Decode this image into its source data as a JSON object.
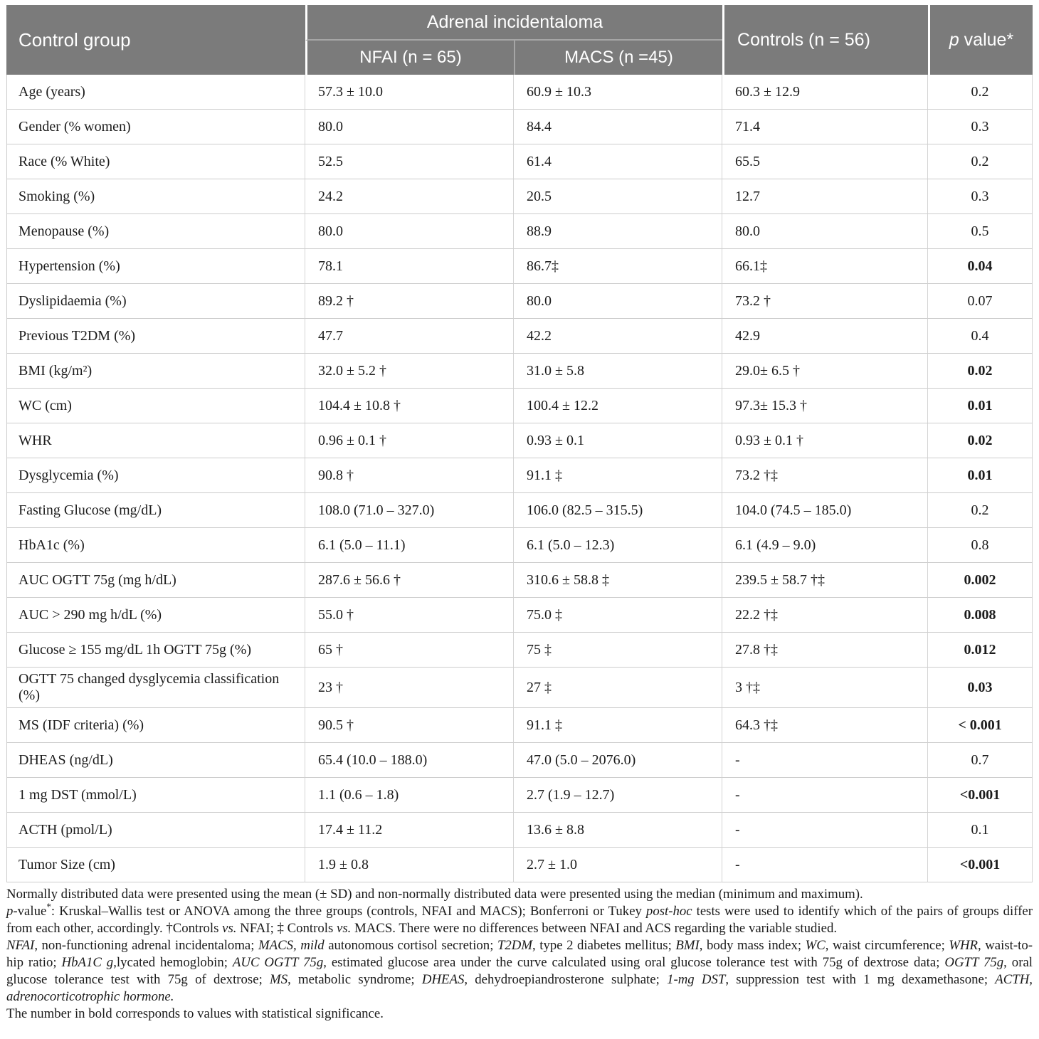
{
  "colors": {
    "header_bg": "#7b7b7b",
    "header_text": "#ffffff",
    "grid_line": "#cccccc",
    "body_text": "#1b1b1b"
  },
  "header": {
    "col1": "Control group",
    "group": "Adrenal incidentaloma",
    "sub_nfai": "NFAI (n = 65)",
    "sub_macs": "MACS (n =45)",
    "controls": "Controls (n = 56)",
    "p_italic": "p",
    "p_rest": " value*"
  },
  "table": {
    "rows": [
      {
        "label": "Age (years)",
        "nfai": "57.3 ± 10.0",
        "macs": "60.9 ± 10.3",
        "controls": "60.3 ± 12.9",
        "p": "0.2",
        "p_bold": false
      },
      {
        "label": "Gender (% women)",
        "nfai": "80.0",
        "macs": "84.4",
        "controls": "71.4",
        "p": "0.3",
        "p_bold": false
      },
      {
        "label": "Race (% White)",
        "nfai": "52.5",
        "macs": "61.4",
        "controls": "65.5",
        "p": "0.2",
        "p_bold": false
      },
      {
        "label": "Smoking (%)",
        "nfai": "24.2",
        "macs": "20.5",
        "controls": "12.7",
        "p": "0.3",
        "p_bold": false
      },
      {
        "label": "Menopause (%)",
        "nfai": "80.0",
        "macs": "88.9",
        "controls": "80.0",
        "p": "0.5",
        "p_bold": false
      },
      {
        "label": "Hypertension (%)",
        "nfai": "78.1",
        "macs": "86.7‡",
        "controls": "66.1‡",
        "p": "0.04",
        "p_bold": true
      },
      {
        "label": "Dyslipidaemia (%)",
        "nfai": "89.2 †",
        "macs": "80.0",
        "controls": "73.2 †",
        "p": "0.07",
        "p_bold": false
      },
      {
        "label": "Previous T2DM (%)",
        "nfai": "47.7",
        "macs": "42.2",
        "controls": "42.9",
        "p": "0.4",
        "p_bold": false
      },
      {
        "label": "BMI (kg/m²)",
        "nfai": "32.0 ± 5.2 †",
        "macs": "31.0 ± 5.8",
        "controls": "29.0± 6.5 †",
        "p": "0.02",
        "p_bold": true
      },
      {
        "label": "WC (cm)",
        "nfai": "104.4 ± 10.8 †",
        "macs": "100.4 ± 12.2",
        "controls": "97.3± 15.3 †",
        "p": "0.01",
        "p_bold": true
      },
      {
        "label": "WHR",
        "nfai": "0.96 ± 0.1 †",
        "macs": "0.93 ± 0.1",
        "controls": "0.93 ± 0.1 †",
        "p": "0.02",
        "p_bold": true
      },
      {
        "label": "Dysglycemia (%)",
        "nfai": "90.8 †",
        "macs": "91.1 ‡",
        "controls": "73.2 †‡",
        "p": "0.01",
        "p_bold": true
      },
      {
        "label": "Fasting Glucose (mg/dL)",
        "nfai": "108.0 (71.0 – 327.0)",
        "macs": "106.0 (82.5 – 315.5)",
        "controls": "104.0 (74.5 – 185.0)",
        "p": "0.2",
        "p_bold": false
      },
      {
        "label": "HbA1c (%)",
        "nfai": "6.1 (5.0 – 11.1)",
        "macs": "6.1 (5.0 – 12.3)",
        "controls": "6.1 (4.9 – 9.0)",
        "p": "0.8",
        "p_bold": false
      },
      {
        "label": "AUC OGTT 75g (mg h/dL)",
        "nfai": "287.6 ± 56.6 †",
        "macs": "310.6 ± 58.8 ‡",
        "controls": "239.5 ± 58.7 †‡",
        "p": "0.002",
        "p_bold": true
      },
      {
        "label": "AUC > 290 mg h/dL (%)",
        "nfai": "55.0 †",
        "macs": "75.0 ‡",
        "controls": "22.2 †‡",
        "p": "0.008",
        "p_bold": true
      },
      {
        "label": "Glucose ≥ 155 mg/dL 1h OGTT 75g (%)",
        "nfai": "65 †",
        "macs": "75 ‡",
        "controls": "27.8 †‡",
        "p": "0.012",
        "p_bold": true
      },
      {
        "label": "OGTT 75 changed dysglycemia classification (%)",
        "nfai": "23 †",
        "macs": "27 ‡",
        "controls": "3 †‡",
        "p": "0.03",
        "p_bold": true
      },
      {
        "label": "MS (IDF criteria) (%)",
        "nfai": "90.5 †",
        "macs": "91.1 ‡",
        "controls": "64.3 †‡",
        "p": "< 0.001",
        "p_bold": true
      },
      {
        "label": "DHEAS (ng/dL)",
        "nfai": "65.4 (10.0 – 188.0)",
        "macs": "47.0 (5.0 – 2076.0)",
        "controls": "-",
        "p": "0.7",
        "p_bold": false
      },
      {
        "label": "1 mg DST (mmol/L)",
        "nfai": "1.1 (0.6 – 1.8)",
        "macs": "2.7 (1.9 – 12.7)",
        "controls": "-",
        "p": "<0.001",
        "p_bold": true
      },
      {
        "label": "ACTH (pmol/L)",
        "nfai": "17.4 ± 11.2",
        "macs": "13.6 ± 8.8",
        "controls": "-",
        "p": "0.1",
        "p_bold": false
      },
      {
        "label": "Tumor Size (cm)",
        "nfai": "1.9 ± 0.8",
        "macs": "2.7 ± 1.0",
        "controls": "-",
        "p": "<0.001",
        "p_bold": true
      }
    ]
  },
  "footnotes": [
    {
      "segments": [
        {
          "t": "Normally distributed data were presented using the mean (± SD) and non-normally distributed data were presented using the median (minimum and maximum).",
          "i": false
        }
      ]
    },
    {
      "segments": [
        {
          "t": "p",
          "i": true
        },
        {
          "t": "-value",
          "i": false
        },
        {
          "t": "*",
          "i": false,
          "sup": true
        },
        {
          "t": ": Kruskal–Wallis test or ANOVA among the three groups (controls, NFAI and MACS); Bonferroni or Tukey ",
          "i": false
        },
        {
          "t": "post-hoc",
          "i": true
        },
        {
          "t": " tests were used to identify which of the pairs of groups differ from each other, accordingly. †Controls ",
          "i": false
        },
        {
          "t": "vs.",
          "i": true
        },
        {
          "t": " NFAI; ‡ Controls ",
          "i": false
        },
        {
          "t": "vs.",
          "i": true
        },
        {
          "t": " MACS. There were no differences between NFAI and ACS regarding the variable studied.",
          "i": false
        }
      ]
    },
    {
      "segments": [
        {
          "t": "NFAI",
          "i": true
        },
        {
          "t": ", non-functioning adrenal incidentaloma; ",
          "i": false
        },
        {
          "t": "MACS, mild",
          "i": true
        },
        {
          "t": " autonomous cortisol secretion; ",
          "i": false
        },
        {
          "t": "T2DM",
          "i": true
        },
        {
          "t": ", type 2 diabetes mellitus; ",
          "i": false
        },
        {
          "t": "BMI",
          "i": true
        },
        {
          "t": ", body mass index; ",
          "i": false
        },
        {
          "t": "WC",
          "i": true
        },
        {
          "t": ", waist circumference; ",
          "i": false
        },
        {
          "t": "WHR",
          "i": true
        },
        {
          "t": ", waist-to-hip ratio; ",
          "i": false
        },
        {
          "t": "HbA1C g",
          "i": true
        },
        {
          "t": ",lycated hemoglobin; ",
          "i": false
        },
        {
          "t": "AUC OGTT 75g",
          "i": true
        },
        {
          "t": ", estimated glucose area under the curve calculated using oral glucose tolerance test with 75g of dextrose data; ",
          "i": false
        },
        {
          "t": "OGTT 75g",
          "i": true
        },
        {
          "t": ", oral glucose tolerance test with 75g of dextrose; ",
          "i": false
        },
        {
          "t": "MS",
          "i": true
        },
        {
          "t": ", metabolic syndrome; ",
          "i": false
        },
        {
          "t": "DHEAS",
          "i": true
        },
        {
          "t": ", dehydroepiandrosterone sulphate; ",
          "i": false
        },
        {
          "t": "1-mg DST",
          "i": true
        },
        {
          "t": ", suppression test with 1 mg dexamethasone; ",
          "i": false
        },
        {
          "t": "ACTH, adrenocorticotrophic hormone.",
          "i": true
        }
      ]
    },
    {
      "segments": [
        {
          "t": "The number in bold corresponds to values with statistical significance.",
          "i": false
        }
      ]
    }
  ]
}
